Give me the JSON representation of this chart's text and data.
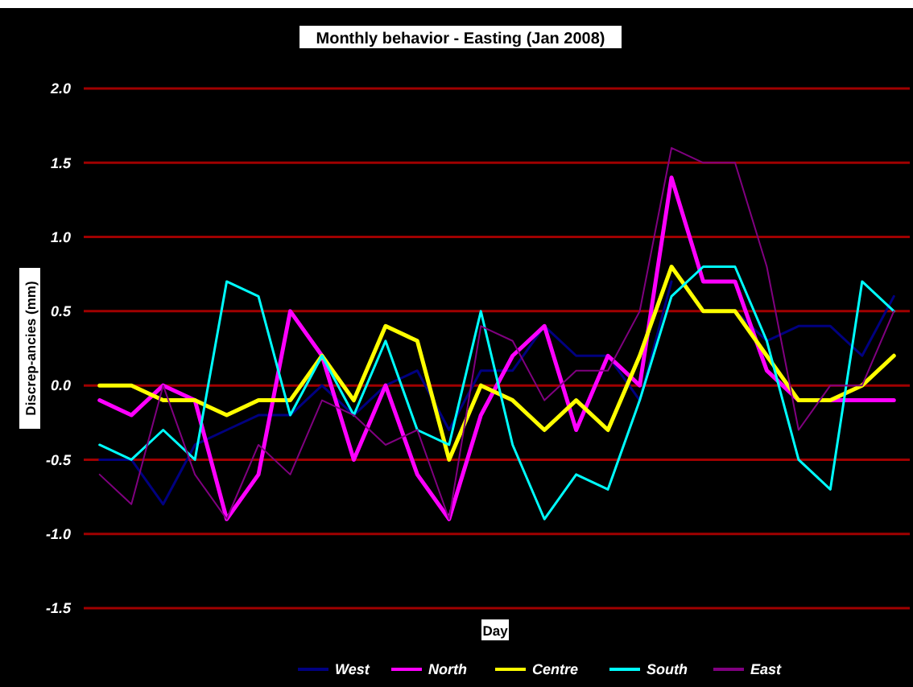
{
  "chart_data": {
    "type": "line",
    "title": "Monthly behavior - Easting (Jan 2008)",
    "xlabel": "Day",
    "ylabel": "Discrep-ancies (mm)",
    "categories": [
      null,
      null,
      null,
      null,
      null,
      null,
      null,
      null,
      null,
      null,
      null,
      null,
      null,
      null,
      null,
      null,
      null,
      null,
      null,
      null,
      null,
      null,
      null,
      null,
      null,
      null
    ],
    "series": [
      {
        "name": "West",
        "color": "#000080",
        "values": [
          -0.5,
          -0.5,
          -0.8,
          -0.4,
          -0.3,
          -0.2,
          -0.2,
          0,
          -0.2,
          0,
          0.1,
          -0.3,
          0.1,
          0.1,
          0.4,
          0.2,
          0.2,
          -0.1,
          0.7,
          null,
          0.5,
          0.3,
          0.4,
          0.4,
          0.2,
          0.6
        ]
      },
      {
        "name": "North",
        "color": "#ff00ff",
        "values": [
          -0.1,
          -0.2,
          0,
          -0.1,
          -0.9,
          -0.6,
          0.5,
          0.2,
          -0.5,
          0,
          -0.6,
          -0.9,
          -0.2,
          0.2,
          0.4,
          -0.3,
          0.2,
          0,
          1.4,
          0.7,
          0.7,
          0.1,
          -0.1,
          -0.1,
          -0.1,
          -0.1
        ]
      },
      {
        "name": "Centre",
        "color": "#ffff00",
        "values": [
          0,
          0,
          -0.1,
          -0.1,
          -0.2,
          -0.1,
          -0.1,
          0.2,
          -0.1,
          0.4,
          0.3,
          -0.5,
          0,
          -0.1,
          -0.3,
          -0.1,
          -0.3,
          0.2,
          0.8,
          0.5,
          0.5,
          0.2,
          -0.1,
          -0.1,
          0,
          0.2
        ]
      },
      {
        "name": "South",
        "color": "#00ffff",
        "values": [
          -0.4,
          -0.5,
          -0.3,
          -0.5,
          0.7,
          0.6,
          -0.2,
          0.2,
          -0.2,
          0.3,
          -0.3,
          -0.4,
          0.5,
          -0.4,
          -0.9,
          -0.6,
          -0.7,
          -0.1,
          0.6,
          0.8,
          0.8,
          0.3,
          -0.5,
          -0.7,
          0.7,
          0.5
        ]
      },
      {
        "name": "East",
        "color": "#800080",
        "values": [
          -0.6,
          -0.8,
          0,
          -0.6,
          -0.9,
          -0.4,
          -0.6,
          -0.1,
          -0.2,
          -0.4,
          -0.3,
          -0.9,
          0.4,
          0.3,
          -0.1,
          0.1,
          0.1,
          0.5,
          1.6,
          1.5,
          1.5,
          0.8,
          -0.3,
          0,
          0,
          0.5
        ]
      }
    ],
    "ylim": [
      -1.5,
      2.0
    ],
    "yticks": [
      {
        "value": -1.5,
        "label": "-1.5"
      },
      {
        "value": -1,
        "label": "-1.0"
      },
      {
        "value": -0.5,
        "label": "-0.5"
      },
      {
        "value": 0,
        "label": "0.0"
      },
      {
        "value": 0.5,
        "label": "0.5"
      },
      {
        "value": 1,
        "label": "1.0"
      },
      {
        "value": 1.5,
        "label": "1.5"
      },
      {
        "value": 2,
        "label": "2.0"
      }
    ],
    "grid": "y",
    "legend": "bottom",
    "marker": "none",
    "line_style": "solid"
  }
}
